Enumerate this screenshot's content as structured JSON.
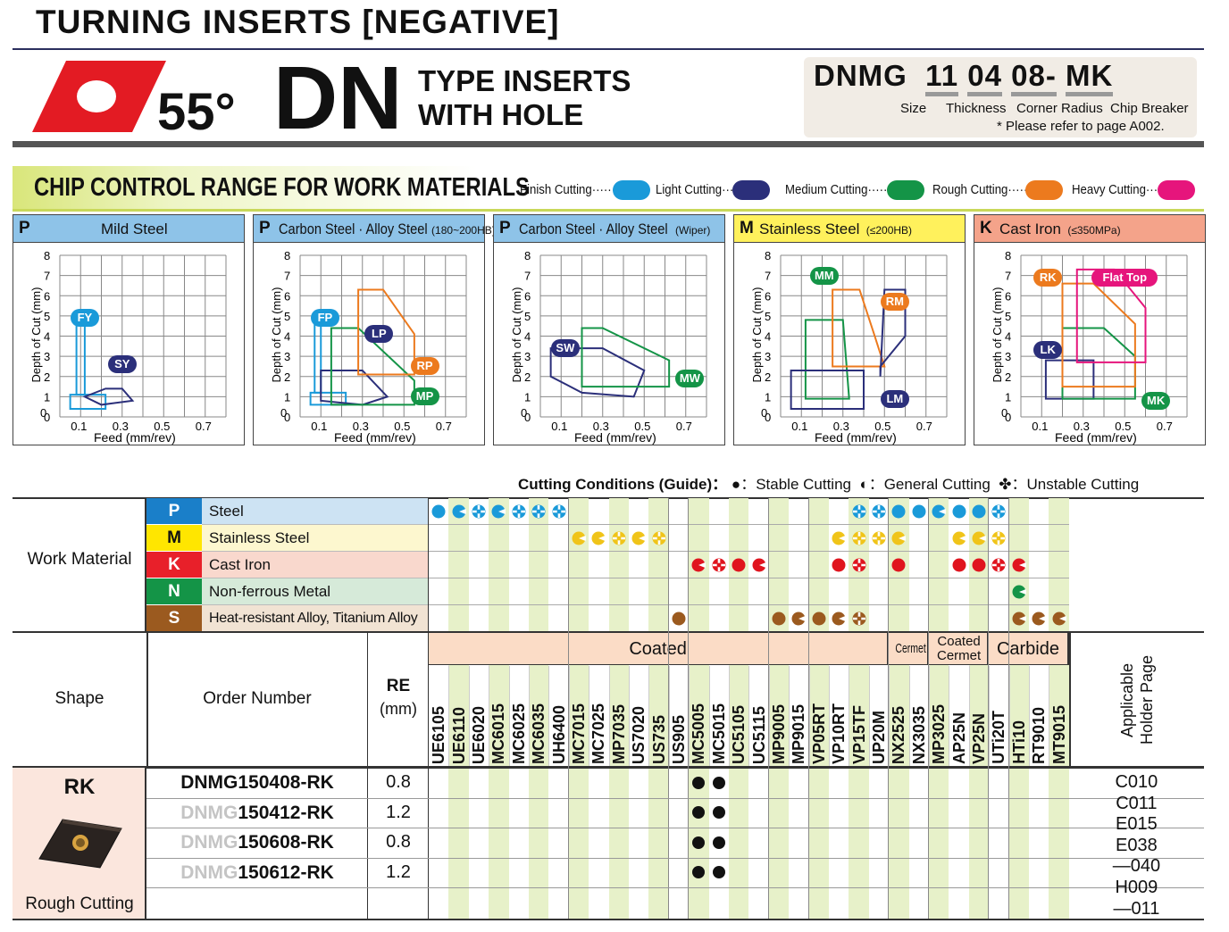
{
  "header": {
    "title": "TURNING INSERTS [NEGATIVE]",
    "angle": "55°",
    "type_code": "DN",
    "type_desc_1": "TYPE INSERTS",
    "type_desc_2": "WITH HOLE"
  },
  "designation": {
    "prefix": "DNMG",
    "size": "11",
    "thickness": "04",
    "radius": "08-",
    "breaker": "MK",
    "size_label": "Size",
    "thickness_label": "Thickness",
    "radius_label": "Corner Radius",
    "breaker_label": "Chip Breaker",
    "note": "* Please refer to page A002."
  },
  "chip_control": {
    "title": "CHIP CONTROL RANGE FOR WORK MATERIALS",
    "legend": [
      {
        "label": "Finish Cutting······",
        "color": "#1a9ad9"
      },
      {
        "label": "Light Cutting······",
        "color": "#2b2f7a"
      },
      {
        "label": "Medium Cutting······",
        "color": "#149447"
      },
      {
        "label": "Rough Cutting······",
        "color": "#ec7a1e"
      },
      {
        "label": "Heavy Cutting······",
        "color": "#e6157c"
      }
    ],
    "y_axis_label": "Depth of Cut (mm)",
    "x_axis_label": "Feed (mm/rev)",
    "y_ticks": [
      "0",
      "1",
      "2",
      "3",
      "4",
      "5",
      "6",
      "7",
      "8"
    ],
    "x_ticks": [
      "0.1",
      "0.3",
      "0.5",
      "0.7"
    ],
    "panels": [
      {
        "letter": "P",
        "title": "Mild Steel",
        "sub": "",
        "color": "#8ec3e8",
        "labels": [
          {
            "text": "FY",
            "color": "#1a9ad9",
            "x": 0.12,
            "y": 4.9
          },
          {
            "text": "SY",
            "color": "#2b2f7a",
            "x": 0.3,
            "y": 2.6
          }
        ]
      },
      {
        "letter": "P",
        "title": "Carbon Steel · Alloy Steel",
        "sub": "(180~200HB)",
        "color": "#8ec3e8",
        "labels": [
          {
            "text": "FP",
            "color": "#1a9ad9",
            "x": 0.12,
            "y": 4.9
          },
          {
            "text": "LP",
            "color": "#2b2f7a",
            "x": 0.38,
            "y": 4.1
          },
          {
            "text": "RP",
            "color": "#ec7a1e",
            "x": 0.6,
            "y": 2.5
          },
          {
            "text": "MP",
            "color": "#149447",
            "x": 0.6,
            "y": 1.0
          }
        ]
      },
      {
        "letter": "P",
        "title": "Carbon Steel · Alloy Steel",
        "sub": "(Wiper)",
        "color": "#8ec3e8",
        "labels": [
          {
            "text": "SW",
            "color": "#2b2f7a",
            "x": 0.12,
            "y": 3.4
          },
          {
            "text": "MW",
            "color": "#149447",
            "x": 0.72,
            "y": 1.9
          }
        ]
      },
      {
        "letter": "M",
        "title": "Stainless Steel",
        "sub": "(≤200HB)",
        "color": "#fff15c",
        "labels": [
          {
            "text": "MM",
            "color": "#149447",
            "x": 0.21,
            "y": 7.0
          },
          {
            "text": "RM",
            "color": "#ec7a1e",
            "x": 0.55,
            "y": 5.7
          },
          {
            "text": "LM",
            "color": "#2b2f7a",
            "x": 0.55,
            "y": 0.9
          }
        ]
      },
      {
        "letter": "K",
        "title": "Cast Iron",
        "sub": "(≤350MPa)",
        "color": "#f4a38a",
        "labels": [
          {
            "text": "RK",
            "color": "#ec7a1e",
            "x": 0.13,
            "y": 6.9
          },
          {
            "text": "Flat Top",
            "color": "#e6157c",
            "x": 0.5,
            "y": 6.9
          },
          {
            "text": "LK",
            "color": "#2b2f7a",
            "x": 0.13,
            "y": 3.3
          },
          {
            "text": "MK",
            "color": "#149447",
            "x": 0.65,
            "y": 0.8
          }
        ]
      }
    ]
  },
  "conditions": {
    "title": "Cutting Conditions (Guide)：",
    "stable": "●：Stable Cutting",
    "general": "◐：General Cutting",
    "unstable": "✤：Unstable Cutting"
  },
  "materials": {
    "section_label": "Work Material",
    "rows": [
      {
        "letter": "P",
        "name": "Steel",
        "color": "#1a7fc9",
        "bg": "#cde3f3",
        "dot": "#1a9ad9"
      },
      {
        "letter": "M",
        "name": "Stainless Steel",
        "color": "#ffe600",
        "bg": "#fdf7cf",
        "dot": "#f0c419"
      },
      {
        "letter": "K",
        "name": "Cast Iron",
        "color": "#e8202a",
        "bg": "#f9d8cd",
        "dot": "#e0141e"
      },
      {
        "letter": "N",
        "name": "Non-ferrous Metal",
        "color": "#149447",
        "bg": "#d6ead9",
        "dot": "#149447"
      },
      {
        "letter": "S",
        "name": "Heat-resistant Alloy, Titanium Alloy",
        "color": "#9b5a1f",
        "bg": "#f1e3d3",
        "dot": "#9b5a1f"
      }
    ]
  },
  "grades": {
    "coated": "Coated",
    "cermet": "Cermet",
    "coated_cermet": "Coated Cermet",
    "carbide": "Carbide",
    "list": [
      "UE6105",
      "UE6110",
      "UE6020",
      "MC6015",
      "MC6025",
      "MC6035",
      "UH6400",
      "MC7015",
      "MC7025",
      "MP7035",
      "US7020",
      "US735",
      "US905",
      "MC5005",
      "MC5015",
      "UC5105",
      "UC5115",
      "MP9005",
      "MP9015",
      "VP05RT",
      "VP10RT",
      "VP15TF",
      "UP20M",
      "NX2525",
      "NX3035",
      "MP3025",
      "AP25N",
      "VP25N",
      "UTi20T",
      "HTi10",
      "RT9010",
      "MT9015"
    ],
    "symbols": {
      "P": [
        "s",
        "g",
        "u",
        "g",
        "u",
        "u",
        "u",
        "",
        "",
        "",
        "",
        "",
        "",
        "",
        "",
        "",
        "",
        "",
        "",
        "",
        "",
        "u",
        "u",
        "s",
        "s",
        "g",
        "s",
        "s",
        "u",
        "",
        "",
        ""
      ],
      "M": [
        "",
        "",
        "",
        "",
        "",
        "",
        "",
        "g",
        "g",
        "u",
        "g",
        "u",
        "",
        "",
        "",
        "",
        "",
        "",
        "",
        "",
        "g",
        "u",
        "u",
        "g",
        "",
        "",
        "g",
        "g",
        "u",
        "",
        "",
        ""
      ],
      "K": [
        "",
        "",
        "",
        "",
        "",
        "",
        "",
        "",
        "",
        "",
        "",
        "",
        "",
        "g",
        "u",
        "s",
        "g",
        "",
        "",
        "",
        "s",
        "u",
        "",
        "s",
        "",
        "",
        "s",
        "s",
        "u",
        "g",
        "",
        ""
      ],
      "N": [
        "",
        "",
        "",
        "",
        "",
        "",
        "",
        "",
        "",
        "",
        "",
        "",
        "",
        "",
        "",
        "",
        "",
        "",
        "",
        "",
        "",
        "",
        "",
        "",
        "",
        "",
        "",
        "",
        "",
        "g",
        "",
        ""
      ],
      "S": [
        "",
        "",
        "",
        "",
        "",
        "",
        "",
        "",
        "",
        "",
        "",
        "",
        "s",
        "",
        "",
        "",
        "",
        "s",
        "g",
        "s",
        "g",
        "u",
        "",
        "",
        "",
        "",
        "",
        "",
        "",
        "g",
        "g",
        "g"
      ]
    }
  },
  "table_head": {
    "shape": "Shape",
    "order": "Order Number",
    "re": "RE",
    "re_unit": "(mm)",
    "holder": "Applicable Holder Page"
  },
  "products": {
    "breaker": "RK",
    "usage": "Rough Cutting",
    "rows": [
      {
        "prefix": "",
        "number": "DNMG150408-RK",
        "re": "0.8",
        "stock": [
          "MC5005",
          "MC5015"
        ]
      },
      {
        "prefix": "DNMG",
        "number": "150412-RK",
        "re": "1.2",
        "stock": [
          "MC5005",
          "MC5015"
        ]
      },
      {
        "prefix": "DNMG",
        "number": "150608-RK",
        "re": "0.8",
        "stock": [
          "MC5005",
          "MC5015"
        ]
      },
      {
        "prefix": "DNMG",
        "number": "150612-RK",
        "re": "1.2",
        "stock": [
          "MC5005",
          "MC5015"
        ]
      }
    ],
    "holder_pages": [
      "C010",
      "C011",
      "E015",
      "E038",
      "—040",
      "H009",
      "—011"
    ]
  }
}
